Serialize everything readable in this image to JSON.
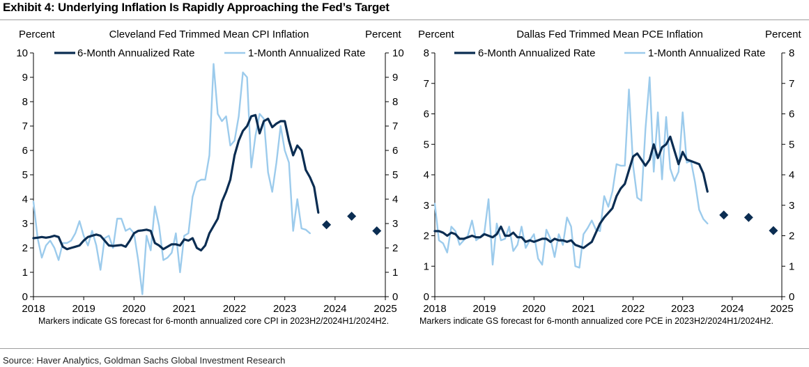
{
  "header": {
    "title": "Exhibit 4: Underlying Inflation Is Rapidly Approaching the Fed’s Target"
  },
  "footer": {
    "source": "Source: Haver Analytics, Goldman Sachs Global Investment Research"
  },
  "colors": {
    "six_month": "#0b2d52",
    "one_month": "#9ccbec",
    "forecast_marker": "#0b2d52",
    "axis": "#000000"
  },
  "chart_data": [
    {
      "type": "line",
      "title": "Cleveland Fed Trimmed Mean CPI Inflation",
      "ylabel_left": "Percent",
      "ylabel_right": "Percent",
      "ylim": [
        0,
        10
      ],
      "yticks": [
        0,
        1,
        2,
        3,
        4,
        5,
        6,
        7,
        8,
        9,
        10
      ],
      "xlim": [
        2018,
        2025
      ],
      "xticks": [
        "2018",
        "2019",
        "2020",
        "2021",
        "2022",
        "2023",
        "2024",
        "2025"
      ],
      "footnote": "Markers indicate GS forecast for 6-month annualized core CPI in 2023H2/2024H1/2024H2.",
      "legend_position": "top",
      "series": [
        {
          "name": "6-Month Annualized Rate",
          "color": "#0b2d52",
          "start_year": 2018.0,
          "step_years": 0.08333,
          "values": [
            2.4,
            2.42,
            2.45,
            2.42,
            2.45,
            2.5,
            2.45,
            2.05,
            1.95,
            2.0,
            2.05,
            2.1,
            2.3,
            2.45,
            2.5,
            2.55,
            2.5,
            2.3,
            2.1,
            2.08,
            2.1,
            2.12,
            2.05,
            2.3,
            2.6,
            2.7,
            2.72,
            2.75,
            2.7,
            2.2,
            2.1,
            1.95,
            2.05,
            2.15,
            2.15,
            2.1,
            2.35,
            2.3,
            2.4,
            2.0,
            1.9,
            2.1,
            2.6,
            2.9,
            3.2,
            3.9,
            4.3,
            4.8,
            5.8,
            6.4,
            6.8,
            7.0,
            7.4,
            7.45,
            6.7,
            7.2,
            7.3,
            6.95,
            7.1,
            7.2,
            7.2,
            6.4,
            5.8,
            6.2,
            6.0,
            5.2,
            4.9,
            4.5,
            3.45
          ]
        },
        {
          "name": "1-Month Annualized Rate",
          "color": "#9ccbec",
          "start_year": 2018.0,
          "step_years": 0.08333,
          "values": [
            3.9,
            2.4,
            1.6,
            2.1,
            2.3,
            2.0,
            1.5,
            2.2,
            2.2,
            2.3,
            2.6,
            3.1,
            2.5,
            2.1,
            2.7,
            2.1,
            1.1,
            2.4,
            2.5,
            2.0,
            3.2,
            3.2,
            2.7,
            2.8,
            2.6,
            1.5,
            0.1,
            2.5,
            1.9,
            3.7,
            2.9,
            1.5,
            1.6,
            1.8,
            2.6,
            1.0,
            2.5,
            2.6,
            4.1,
            4.7,
            4.8,
            4.8,
            5.8,
            9.55,
            7.5,
            7.2,
            7.4,
            6.2,
            6.4,
            7.4,
            9.2,
            9.0,
            5.3,
            6.6,
            7.5,
            7.3,
            5.1,
            4.3,
            5.5,
            7.0,
            6.0,
            5.5,
            2.7,
            4.0,
            2.8,
            2.75,
            2.6
          ]
        }
      ],
      "forecast": {
        "x": [
          2023.83,
          2024.33,
          2024.83
        ],
        "values": [
          2.95,
          3.3,
          2.7
        ]
      }
    },
    {
      "type": "line",
      "title": "Dallas Fed Trimmed Mean PCE Inflation",
      "ylabel_left": "Percent",
      "ylabel_right": "Percent",
      "ylim": [
        0,
        8
      ],
      "yticks": [
        0,
        1,
        2,
        3,
        4,
        5,
        6,
        7,
        8
      ],
      "xlim": [
        2018,
        2025
      ],
      "xticks": [
        "2018",
        "2019",
        "2020",
        "2021",
        "2022",
        "2023",
        "2024",
        "2025"
      ],
      "footnote": "Markers indicate GS forecast for 6-month annualized core PCE in 2023H2/2024H1/2024H2.",
      "legend_position": "top",
      "series": [
        {
          "name": "6-Month Annualized Rate",
          "color": "#0b2d52",
          "start_year": 2018.0,
          "step_years": 0.08333,
          "values": [
            2.15,
            2.15,
            2.1,
            2.0,
            2.1,
            2.05,
            1.9,
            1.9,
            1.95,
            2.0,
            1.95,
            1.95,
            2.05,
            2.0,
            1.95,
            2.05,
            2.3,
            2.0,
            2.0,
            2.1,
            1.95,
            1.95,
            1.8,
            1.85,
            1.8,
            1.85,
            1.9,
            1.9,
            1.8,
            1.9,
            1.85,
            1.85,
            1.8,
            1.85,
            1.7,
            1.65,
            1.6,
            1.7,
            1.8,
            2.1,
            2.4,
            2.6,
            2.75,
            2.9,
            3.3,
            3.55,
            3.7,
            4.15,
            4.6,
            4.7,
            4.5,
            4.3,
            4.5,
            5.0,
            4.55,
            4.9,
            5.0,
            5.25,
            4.8,
            4.35,
            4.75,
            4.5,
            4.45,
            4.4,
            4.35,
            4.05,
            3.45
          ]
        },
        {
          "name": "1-Month Annualized Rate",
          "color": "#9ccbec",
          "start_year": 2018.0,
          "step_years": 0.08333,
          "values": [
            3.05,
            1.85,
            1.75,
            1.45,
            2.3,
            2.15,
            1.7,
            1.85,
            2.0,
            2.5,
            1.85,
            1.95,
            2.1,
            3.2,
            1.05,
            2.4,
            1.85,
            1.9,
            2.3,
            1.5,
            1.7,
            2.3,
            1.6,
            1.85,
            2.05,
            1.25,
            1.05,
            2.2,
            1.9,
            1.3,
            2.05,
            1.7,
            2.6,
            2.3,
            1.0,
            0.95,
            2.05,
            2.25,
            2.5,
            2.2,
            2.15,
            3.3,
            2.95,
            3.45,
            4.35,
            4.3,
            4.3,
            6.8,
            4.3,
            3.25,
            3.15,
            5.5,
            7.2,
            4.1,
            6.05,
            3.85,
            5.9,
            4.2,
            3.8,
            4.1,
            6.05,
            4.4,
            4.45,
            3.75,
            2.85,
            2.55,
            2.4
          ]
        }
      ],
      "forecast": {
        "x": [
          2023.83,
          2024.33,
          2024.83
        ],
        "values": [
          2.68,
          2.6,
          2.17
        ]
      }
    }
  ]
}
